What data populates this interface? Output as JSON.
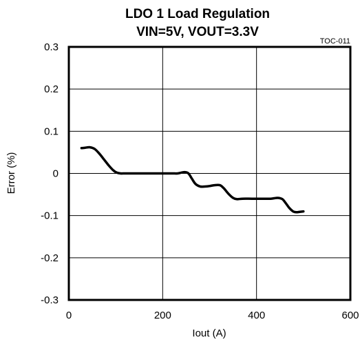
{
  "chart_data": {
    "type": "line",
    "title": "LDO 1 Load Regulation",
    "subtitle": "VIN=5V, VOUT=3.3V",
    "annotation": "TOC-011",
    "xlabel": "Iout (A)",
    "ylabel": "Error (%)",
    "xlim": [
      0,
      600
    ],
    "ylim": [
      -0.3,
      0.3
    ],
    "xticks": [
      0,
      200,
      400,
      600
    ],
    "yticks": [
      0.3,
      0.2,
      0.1,
      0,
      -0.1,
      -0.2,
      -0.3
    ],
    "xtick_labels": [
      "0",
      "200",
      "400",
      "600"
    ],
    "ytick_labels": [
      "0.3",
      "0.2",
      "0.1",
      "0",
      "-0.1",
      "-0.2",
      "-0.3"
    ],
    "grid": true,
    "line_color": "#000000",
    "series": [
      {
        "x": [
          27,
          35,
          45,
          55,
          65,
          75,
          85,
          95,
          102,
          110,
          120,
          140,
          160,
          180,
          200,
          220,
          232,
          240,
          248,
          255,
          262,
          270,
          280,
          290,
          300,
          310,
          322,
          330,
          340,
          350,
          358,
          370,
          390,
          410,
          430,
          445,
          455,
          462,
          470,
          478,
          485,
          492,
          500
        ],
        "y": [
          0.06,
          0.061,
          0.062,
          0.058,
          0.047,
          0.033,
          0.019,
          0.007,
          0.002,
          0.0,
          0.0,
          0.0,
          0.0,
          0.0,
          0.0,
          0.0,
          0.0,
          0.002,
          0.003,
          0.0,
          -0.012,
          -0.025,
          -0.031,
          -0.031,
          -0.03,
          -0.028,
          -0.028,
          -0.035,
          -0.048,
          -0.058,
          -0.061,
          -0.06,
          -0.06,
          -0.06,
          -0.06,
          -0.058,
          -0.061,
          -0.07,
          -0.082,
          -0.09,
          -0.092,
          -0.091,
          -0.09
        ]
      }
    ]
  }
}
